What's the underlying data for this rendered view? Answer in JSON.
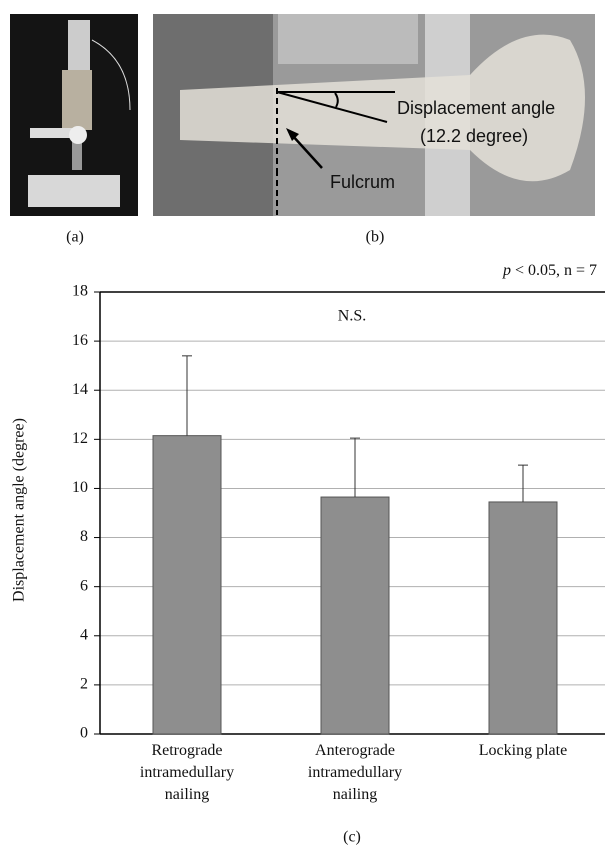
{
  "panels": {
    "a": "(a)",
    "b": "(b)",
    "c": "(c)"
  },
  "photo_b": {
    "angle_label": "Displacement angle",
    "angle_value": "(12.2 degree)",
    "fulcrum_label": "Fulcrum"
  },
  "chart_data": {
    "type": "bar",
    "y_label": "Displacement angle (degree)",
    "annotation_symbol": "p",
    "annotation": "< 0.05, n = 7",
    "significance": "N.S.",
    "categories": [
      "Retrograde intramedullary nailing",
      "Anterograde intramedullary nailing",
      "Locking plate"
    ],
    "values": [
      12.15,
      9.65,
      9.45
    ],
    "errors": [
      3.25,
      2.4,
      1.5
    ],
    "color": "#8e8e8e",
    "ylim": [
      0,
      18
    ],
    "yticks": [
      0,
      2,
      4,
      6,
      8,
      10,
      12,
      14,
      16,
      18
    ],
    "grid": true
  }
}
